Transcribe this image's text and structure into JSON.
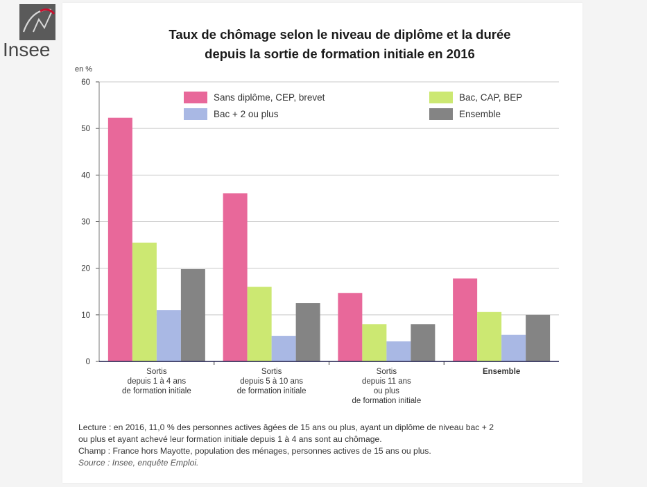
{
  "brand": {
    "name": "Insee"
  },
  "title_lines": [
    "Taux de chômage selon le niveau de diplôme et la durée",
    "depuis la sortie de formation initiale en 2016"
  ],
  "notes": {
    "lecture_1": "Lecture : en 2016, 11,0 % des personnes actives âgées de 15 ans ou plus, ayant un diplôme de niveau bac + 2",
    "lecture_2": "ou plus et ayant achevé leur formation initiale depuis 1 à 4 ans sont au chômage.",
    "champ": "Champ : France hors Mayotte, population des ménages, personnes actives de 15 ans ou plus.",
    "source": "Source : Insee, enquête Emploi."
  },
  "chart_data": {
    "type": "bar",
    "title": "Taux de chômage selon le niveau de diplôme et la durée depuis la sortie de formation initiale en 2016",
    "ylabel": "en %",
    "ylim": [
      0,
      60
    ],
    "yticks": [
      0,
      10,
      20,
      30,
      40,
      50,
      60
    ],
    "grid": true,
    "legend_position": "top",
    "categories": [
      [
        "Sortis",
        "depuis 1 à 4 ans",
        "de formation initiale"
      ],
      [
        "Sortis",
        "depuis 5 à 10 ans",
        "de formation initiale"
      ],
      [
        "Sortis",
        "depuis 11 ans",
        "ou plus",
        "de formation initiale"
      ],
      [
        "Ensemble"
      ]
    ],
    "bold_category_index": 3,
    "series": [
      {
        "name": "Sans diplôme, CEP, brevet",
        "color": "#e8689a",
        "values": [
          52.3,
          36.1,
          14.7,
          17.8
        ]
      },
      {
        "name": "Bac, CAP, BEP",
        "color": "#cce872",
        "values": [
          25.5,
          16.0,
          8.0,
          10.6
        ]
      },
      {
        "name": "Bac + 2 ou plus",
        "color": "#a9b8e4",
        "values": [
          11.0,
          5.5,
          4.3,
          5.7
        ]
      },
      {
        "name": "Ensemble",
        "color": "#848484",
        "values": [
          19.8,
          12.5,
          8.0,
          10.0
        ]
      }
    ]
  }
}
